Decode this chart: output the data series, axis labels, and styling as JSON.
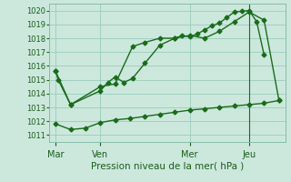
{
  "title": "Pression niveau de la mer( hPa )",
  "background_color": "#cce8dd",
  "grid_color": "#99ccbb",
  "line_color": "#1a6b1a",
  "ylim": [
    1010.5,
    1020.5
  ],
  "yticks": [
    1011,
    1012,
    1013,
    1014,
    1015,
    1016,
    1017,
    1018,
    1019,
    1020
  ],
  "xtick_labels": [
    "Mar",
    "Ven",
    "Mer",
    "Jeu"
  ],
  "xtick_positions": [
    0,
    36,
    108,
    156
  ],
  "xlim": [
    -5,
    185
  ],
  "vline_x": 156,
  "series1_x": [
    0,
    2,
    12,
    36,
    42,
    48,
    55,
    62,
    72,
    84,
    96,
    102,
    108,
    114,
    120,
    126,
    132,
    138,
    144,
    150,
    156,
    162,
    168
  ],
  "series1_y": [
    1015.6,
    1015.0,
    1013.2,
    1014.2,
    1014.8,
    1015.2,
    1014.8,
    1015.1,
    1016.2,
    1017.5,
    1018.0,
    1018.2,
    1018.1,
    1018.3,
    1018.6,
    1018.9,
    1019.1,
    1019.5,
    1019.9,
    1019.95,
    1020.0,
    1019.2,
    1016.8
  ],
  "series2_x": [
    0,
    12,
    36,
    48,
    62,
    72,
    84,
    96,
    108,
    120,
    132,
    144,
    156,
    168,
    180
  ],
  "series2_y": [
    1015.6,
    1013.2,
    1014.5,
    1014.7,
    1017.4,
    1017.7,
    1018.0,
    1018.0,
    1018.2,
    1018.0,
    1018.5,
    1019.2,
    1019.9,
    1019.3,
    1013.5
  ],
  "series3_x": [
    0,
    12,
    24,
    36,
    48,
    60,
    72,
    84,
    96,
    108,
    120,
    132,
    144,
    156,
    168,
    180
  ],
  "series3_y": [
    1011.8,
    1011.4,
    1011.5,
    1011.9,
    1012.1,
    1012.2,
    1012.35,
    1012.5,
    1012.65,
    1012.8,
    1012.9,
    1013.0,
    1013.1,
    1013.2,
    1013.3,
    1013.5
  ],
  "marker": "D",
  "markersize": 2.5,
  "linewidth": 1.0
}
